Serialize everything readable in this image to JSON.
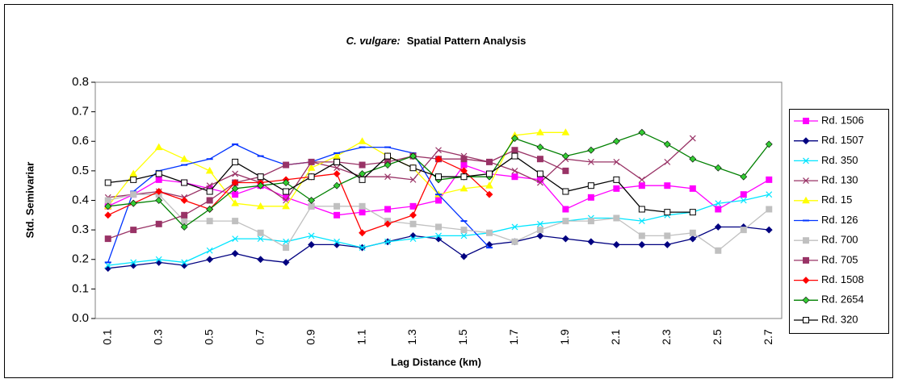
{
  "chart_data": {
    "type": "line",
    "title": {
      "species": "C. vulgare:",
      "text": "Spatial Pattern Analysis"
    },
    "x_label": "Lag Distance (km)",
    "y_label": "Std. Semivariar",
    "categories": [
      "0.1",
      null,
      "0.3",
      null,
      "0.5",
      null,
      "0.7",
      null,
      "0.9",
      null,
      "1.1",
      null,
      "1.3",
      null,
      "1.5",
      null,
      "1.7",
      null,
      "1.9",
      null,
      "2.1",
      null,
      "2.3",
      null,
      "2.5",
      null,
      "2.7"
    ],
    "ylim": [
      0,
      0.8
    ],
    "yticks": [
      {
        "value": 0,
        "label": "0.0"
      },
      0.1,
      0.2,
      0.3,
      0.4,
      0.5,
      0.6,
      0.7,
      0.8
    ],
    "legend": "right",
    "series": [
      {
        "name": "Rd. 1506",
        "color": "#ff00ff",
        "marker": "square",
        "values": [
          0.38,
          0.42,
          0.47,
          0.46,
          0.44,
          0.42,
          0.45,
          0.41,
          0.38,
          0.35,
          0.36,
          0.37,
          0.38,
          0.4,
          0.52,
          0.49,
          0.48,
          0.47,
          0.37,
          0.41,
          0.44,
          0.45,
          0.45,
          0.44,
          0.37,
          0.42,
          0.47
        ]
      },
      {
        "name": "Rd. 1507",
        "color": "#000080",
        "marker": "diamond",
        "values": [
          0.17,
          0.18,
          0.19,
          0.18,
          0.2,
          0.22,
          0.2,
          0.19,
          0.25,
          0.25,
          0.24,
          0.26,
          0.28,
          0.27,
          0.21,
          0.25,
          0.26,
          0.28,
          0.27,
          0.26,
          0.25,
          0.25,
          0.25,
          0.27,
          0.31,
          0.31,
          0.3
        ]
      },
      {
        "name": "Rd. 350",
        "color": "#00e5ff",
        "marker": "x",
        "values": [
          0.18,
          0.19,
          0.2,
          0.19,
          0.23,
          0.27,
          0.27,
          0.26,
          0.28,
          0.26,
          0.24,
          0.26,
          0.27,
          0.28,
          0.28,
          0.29,
          0.31,
          0.32,
          0.33,
          0.34,
          0.34,
          0.33,
          0.35,
          0.36,
          0.39,
          0.4,
          0.42
        ]
      },
      {
        "name": "Rd. 130",
        "color": "#993366",
        "marker": "x",
        "values": [
          0.41,
          0.42,
          0.43,
          0.41,
          0.45,
          0.49,
          0.46,
          0.4,
          0.53,
          0.51,
          0.48,
          0.48,
          0.47,
          0.57,
          0.55,
          0.53,
          0.5,
          0.46,
          0.54,
          0.53,
          0.53,
          0.47,
          0.53,
          0.61,
          null,
          null,
          null
        ]
      },
      {
        "name": "Rd. 15",
        "color": "#ffff00",
        "marker": "triangle",
        "values": [
          0.38,
          0.49,
          0.58,
          0.54,
          0.5,
          0.39,
          0.38,
          0.38,
          0.51,
          0.55,
          0.6,
          0.55,
          0.51,
          0.42,
          0.44,
          0.45,
          0.62,
          0.63,
          0.63,
          null,
          null,
          null,
          null,
          null,
          null,
          null,
          null
        ]
      },
      {
        "name": "Rd. 126",
        "color": "#0033ff",
        "marker": "dash",
        "values": [
          0.19,
          0.43,
          0.5,
          0.52,
          0.54,
          0.59,
          0.55,
          0.52,
          0.53,
          0.56,
          0.58,
          0.58,
          0.56,
          0.42,
          0.33,
          0.24,
          null,
          null,
          null,
          null,
          null,
          null,
          null,
          null,
          null,
          null,
          null
        ]
      },
      {
        "name": "Rd. 700",
        "color": "#c0c0c0",
        "marker": "square",
        "values": [
          0.4,
          0.42,
          0.42,
          0.33,
          0.33,
          0.33,
          0.29,
          0.24,
          0.38,
          0.38,
          0.38,
          0.33,
          0.32,
          0.31,
          0.3,
          0.29,
          0.26,
          0.3,
          0.33,
          0.33,
          0.34,
          0.28,
          0.28,
          0.29,
          0.23,
          0.3,
          0.37
        ]
      },
      {
        "name": "Rd. 705",
        "color": "#993366",
        "marker": "square",
        "values": [
          0.27,
          0.3,
          0.32,
          0.35,
          0.4,
          0.46,
          0.48,
          0.52,
          0.53,
          0.53,
          0.52,
          0.53,
          0.55,
          0.54,
          0.54,
          0.53,
          0.57,
          0.54,
          0.5,
          null,
          null,
          null,
          null,
          null,
          null,
          null,
          null
        ]
      },
      {
        "name": "Rd. 1508",
        "color": "#ff0000",
        "marker": "diamond",
        "values": [
          0.35,
          0.39,
          0.43,
          0.4,
          0.37,
          0.46,
          0.46,
          0.47,
          0.48,
          0.49,
          0.29,
          0.32,
          0.35,
          0.54,
          0.5,
          0.42,
          null,
          null,
          null,
          null,
          null,
          null,
          null,
          null,
          null,
          null,
          null
        ]
      },
      {
        "name": "Rd. 2654",
        "color": "#008000",
        "marker": "diamond-green",
        "values": [
          0.38,
          0.39,
          0.4,
          0.31,
          0.37,
          0.44,
          0.45,
          0.46,
          0.4,
          0.45,
          0.49,
          0.52,
          0.55,
          0.47,
          0.48,
          0.48,
          0.61,
          0.58,
          0.55,
          0.57,
          0.6,
          0.63,
          0.59,
          0.54,
          0.51,
          0.48,
          0.59
        ]
      },
      {
        "name": "Rd. 320",
        "color": "#000000",
        "marker": "open-square",
        "values": [
          0.46,
          0.47,
          0.49,
          0.46,
          0.43,
          0.53,
          0.48,
          0.43,
          0.48,
          0.53,
          0.47,
          0.55,
          0.51,
          0.48,
          0.48,
          0.49,
          0.55,
          0.49,
          0.43,
          0.45,
          0.47,
          0.37,
          0.36,
          0.36,
          null,
          null,
          null
        ]
      }
    ]
  }
}
